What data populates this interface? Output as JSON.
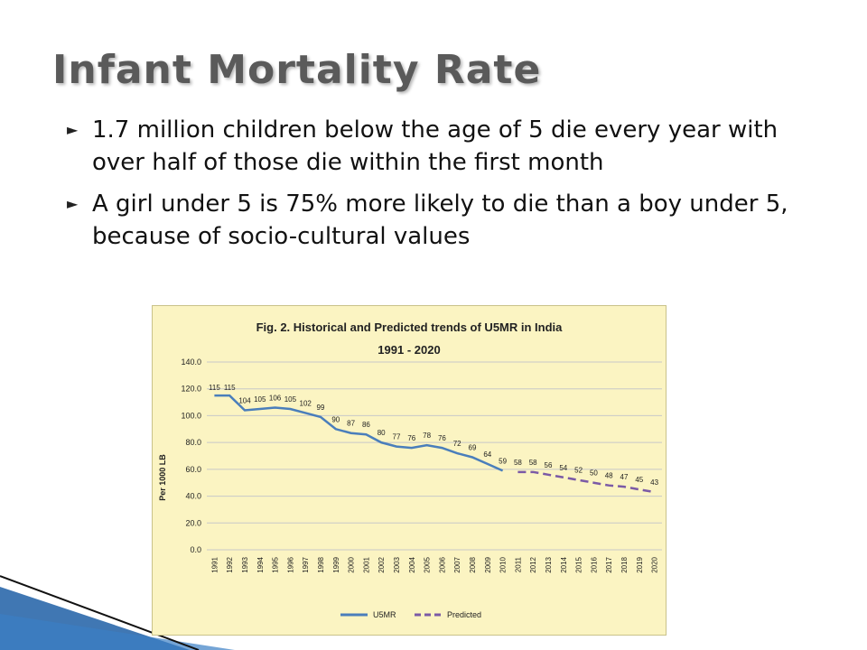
{
  "slide": {
    "title": "Infant Mortality Rate",
    "bullets": [
      "1.7 million children below the age of 5 die every year with over half of those die within the first month",
      "A girl under 5 is 75% more likely to die than a boy under 5, because of socio-cultural values"
    ]
  },
  "colors": {
    "title": "#5a5a5a",
    "chart_background": "#fbf4c2",
    "u5mr_line": "#4a7ebb",
    "predicted_line": "#7b5aa6",
    "corner_accent": "#1f5fa6"
  },
  "chart_data": {
    "type": "line",
    "title": "Fig. 2. Historical and Predicted trends of U5MR in India",
    "subtitle": "1991 - 2020",
    "xlabel": "",
    "ylabel": "Per 1000 LB",
    "ylim": [
      0,
      140
    ],
    "yticks": [
      "0.0",
      "20.0",
      "40.0",
      "60.0",
      "80.0",
      "100.0",
      "120.0",
      "140.0"
    ],
    "grid": true,
    "legend_position": "bottom",
    "categories": [
      "1991",
      "1992",
      "1993",
      "1994",
      "1995",
      "1996",
      "1997",
      "1998",
      "1999",
      "2000",
      "2001",
      "2002",
      "2003",
      "2004",
      "2005",
      "2006",
      "2007",
      "2008",
      "2009",
      "2010",
      "2011",
      "2012",
      "2013",
      "2014",
      "2015",
      "2016",
      "2017",
      "2018",
      "2019",
      "2020"
    ],
    "series": [
      {
        "name": "U5MR",
        "style": "solid",
        "values": [
          115,
          115,
          104,
          105,
          106,
          105,
          102,
          99,
          90,
          87,
          86,
          80,
          77,
          76,
          78,
          76,
          72,
          69,
          64,
          59,
          null,
          null,
          null,
          null,
          null,
          null,
          null,
          null,
          null,
          null
        ]
      },
      {
        "name": "Predicted",
        "style": "dashed",
        "values": [
          null,
          null,
          null,
          null,
          null,
          null,
          null,
          null,
          null,
          null,
          null,
          null,
          null,
          null,
          null,
          null,
          null,
          null,
          null,
          null,
          58,
          58,
          56,
          54,
          52,
          50,
          48,
          47,
          45,
          43
        ]
      }
    ]
  }
}
